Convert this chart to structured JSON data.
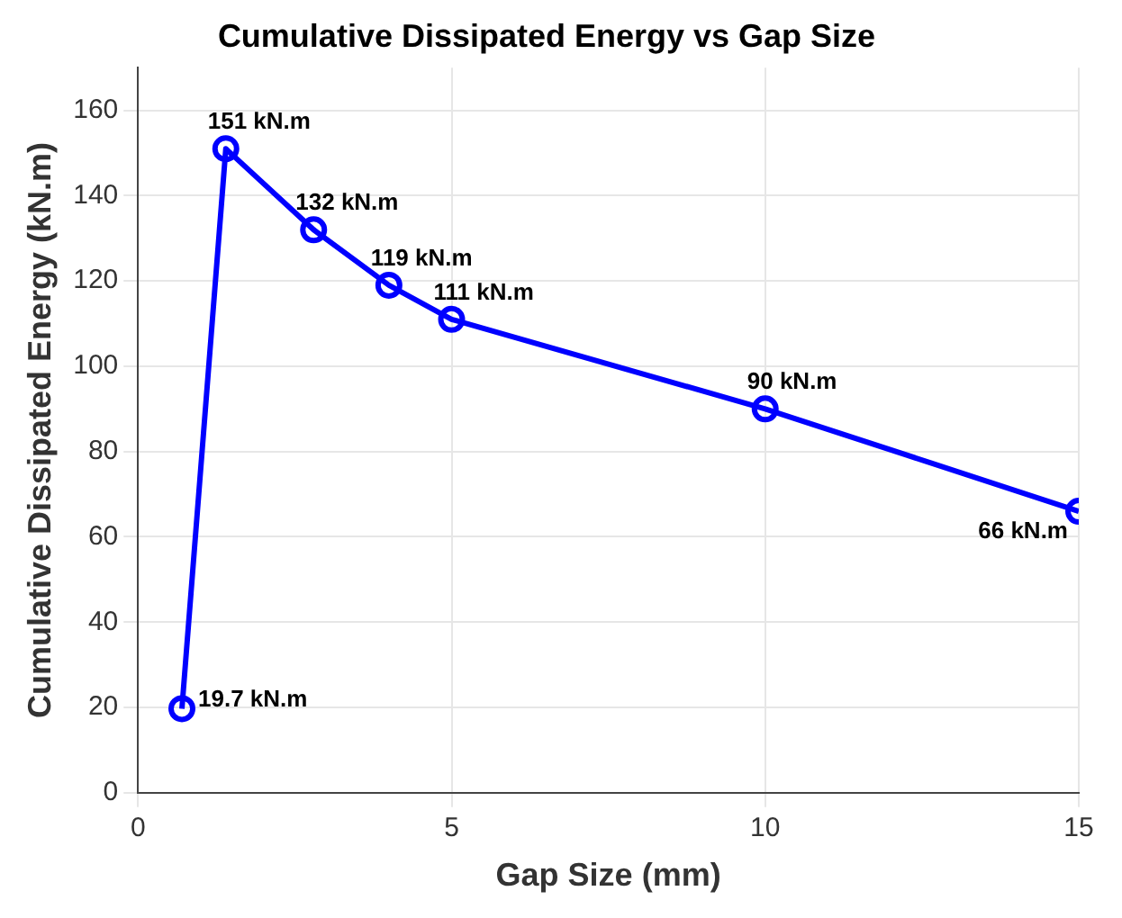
{
  "chart_data": {
    "type": "line",
    "title": "Cumulative Dissipated Energy vs Gap Size",
    "xlabel": "Gap Size (mm)",
    "ylabel": "Cumulative Dissipated Energy (kN.m)",
    "x": [
      0.7,
      1.4,
      2.8,
      4,
      5,
      10,
      15
    ],
    "series": [
      {
        "color": "#0000ff",
        "values": [
          19.7,
          151,
          132,
          119,
          111,
          90,
          66
        ],
        "value_labels": [
          "19.7 kN.m",
          "151 kN.m",
          "132 kN.m",
          "119 kN.m",
          "111 kN.m",
          "90 kN.m",
          "66 kN.m"
        ]
      }
    ],
    "xlim": [
      0,
      15
    ],
    "xticks": [
      0,
      5,
      10,
      15
    ],
    "ylim": [
      0,
      170
    ],
    "yticks": [
      0,
      20,
      40,
      60,
      80,
      100,
      120,
      140,
      160
    ],
    "grid": true,
    "legend": false,
    "marker": "circle",
    "line_style": "solid"
  }
}
